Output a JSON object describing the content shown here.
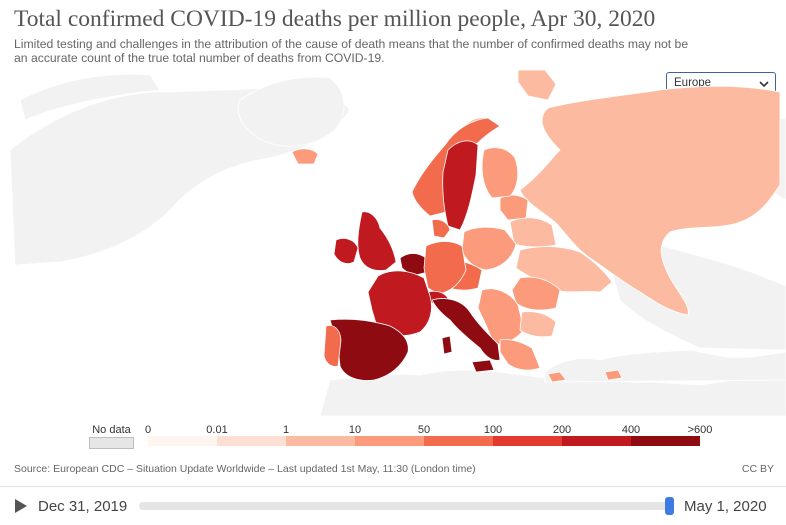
{
  "header": {
    "title": "Total confirmed COVID-19 deaths per million people, Apr 30, 2020",
    "subtitle": "Limited testing and challenges in the attribution of the cause of death means that the number of confirmed deaths may not be an accurate count of the true total number of deaths from COVID-19."
  },
  "region_selector": {
    "value": "Europe"
  },
  "legend": {
    "no_data_label": "No data",
    "no_data_color": "#e6e6e6",
    "ticks": [
      "0",
      "0.01",
      "1",
      "10",
      "50",
      "100",
      "200",
      "400",
      ">600"
    ],
    "bin_colors": [
      "#fff5f0",
      "#fde0d3",
      "#fcbba1",
      "#fb9b7c",
      "#f26b4d",
      "#e23a2e",
      "#c0191f",
      "#8e0b12"
    ]
  },
  "footer": {
    "source": "Source: European CDC – Situation Update Worldwide – Last updated 1st May, 11:30 (London time)",
    "license": "CC BY"
  },
  "timeline": {
    "start_date": "Dec 31, 2019",
    "end_date": "May 1, 2020",
    "position": 0.99
  },
  "background_color": "#f2f2f2",
  "border_color": "#ffffff"
}
